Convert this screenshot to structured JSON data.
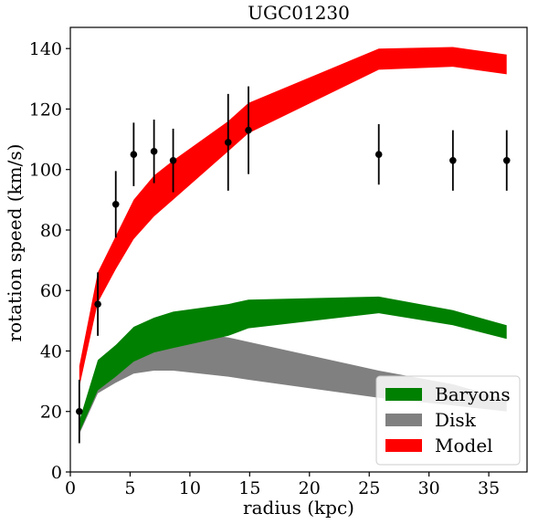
{
  "chart_data": {
    "type": "area",
    "title": "UGC01230",
    "xlabel": "radius (kpc)",
    "ylabel": "rotation speed (km/s)",
    "xlim": [
      0,
      38.2
    ],
    "ylim": [
      0,
      147
    ],
    "xticks": [
      0,
      5,
      10,
      15,
      20,
      25,
      30,
      35
    ],
    "yticks": [
      0,
      20,
      40,
      60,
      80,
      100,
      120,
      140
    ],
    "grid": false,
    "legend_position": "bottom-right",
    "colors": {
      "baryons": "#008000",
      "disk": "#808080",
      "model": "#ff0000",
      "data": "#000000"
    },
    "x": [
      0.75,
      2.3,
      3.8,
      5.3,
      7.0,
      8.6,
      13.2,
      14.9,
      25.8,
      32.0,
      36.5
    ],
    "series": [
      {
        "name": "Disk",
        "color_key": "disk",
        "lower": [
          12.5,
          26,
          29.5,
          32.5,
          33.5,
          33.5,
          31.5,
          30.5,
          24.5,
          22,
          20
        ],
        "upper": [
          16,
          31,
          38,
          45,
          47,
          47,
          44.5,
          43,
          33.5,
          29,
          24
        ]
      },
      {
        "name": "Baryons",
        "color_key": "baryons",
        "lower": [
          13,
          27,
          31.5,
          36.5,
          39.5,
          41,
          45,
          47.5,
          52.5,
          48.5,
          44
        ],
        "upper": [
          17,
          37,
          42,
          48,
          51,
          53,
          55.5,
          57,
          58,
          53.5,
          48.5
        ]
      },
      {
        "name": "Model",
        "color_key": "model",
        "lower": [
          28,
          56,
          67,
          77,
          84.5,
          90,
          106,
          112,
          133,
          134,
          131.5
        ],
        "upper": [
          35,
          66,
          78,
          90,
          98,
          103,
          116,
          122,
          140,
          140.5,
          138
        ]
      }
    ],
    "observed": {
      "x": [
        0.75,
        2.3,
        3.8,
        5.3,
        7.0,
        8.6,
        13.2,
        14.9,
        25.8,
        32.0,
        36.5
      ],
      "y": [
        20,
        55.5,
        88.5,
        105,
        106,
        103,
        109,
        113,
        105,
        103,
        103
      ],
      "err": [
        10.5,
        10.5,
        11,
        10.5,
        10.5,
        10.5,
        16,
        14.5,
        10,
        10,
        10
      ]
    },
    "legend": [
      "Baryons",
      "Disk",
      "Model"
    ]
  }
}
